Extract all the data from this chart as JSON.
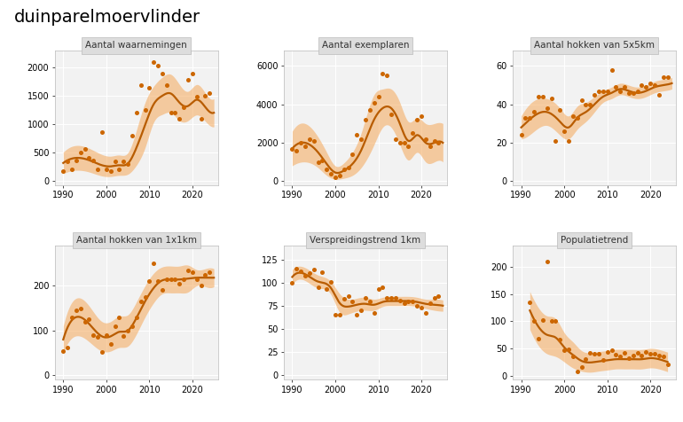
{
  "title": "duinparelmoervlinder",
  "panel_titles": [
    "Aantal waarnemingen",
    "Aantal exemplaren",
    "Aantal hokken van 5x5km",
    "Aantal hokken van 1x1km",
    "Verspreidingstrend 1km",
    "Populatietrend"
  ],
  "dot_color": "#CC6600",
  "line_color": "#B85C00",
  "ribbon_color": "#F5A85A",
  "bg_color": "#FFFFFF",
  "panel_bg": "#F2F2F2",
  "strip_bg": "#DDDDDD",
  "grid_color": "#FFFFFF",
  "xlim": [
    1988,
    2026
  ],
  "xticks": [
    1990,
    2000,
    2010,
    2020
  ],
  "panels": [
    {
      "ylim": [
        -80,
        2300
      ],
      "yticks": [
        0,
        500,
        1000,
        1500,
        2000
      ],
      "points_x": [
        1990,
        1991,
        1992,
        1993,
        1994,
        1995,
        1996,
        1997,
        1998,
        1999,
        2000,
        2001,
        2002,
        2003,
        2004,
        2005,
        2006,
        2007,
        2008,
        2009,
        2010,
        2011,
        2012,
        2013,
        2014,
        2015,
        2016,
        2017,
        2018,
        2019,
        2020,
        2021,
        2022,
        2023,
        2024
      ],
      "points_y": [
        160,
        340,
        190,
        350,
        490,
        560,
        400,
        350,
        200,
        850,
        190,
        160,
        340,
        200,
        340,
        290,
        790,
        1200,
        1690,
        1250,
        1640,
        2090,
        2040,
        1890,
        1690,
        1200,
        1200,
        1090,
        1300,
        1790,
        1890,
        1490,
        1090,
        1500,
        1550
      ],
      "smooth_x": [
        1990,
        1993,
        1996,
        1999,
        2001,
        2003,
        2005,
        2007,
        2009,
        2011,
        2013,
        2015,
        2017,
        2019,
        2021,
        2023,
        2025
      ],
      "smooth_y": [
        310,
        400,
        360,
        270,
        250,
        270,
        300,
        580,
        980,
        1350,
        1500,
        1540,
        1380,
        1320,
        1430,
        1300,
        1200
      ],
      "ci_lo": [
        120,
        180,
        150,
        80,
        70,
        90,
        110,
        270,
        580,
        1030,
        1170,
        1200,
        1060,
        1060,
        1160,
        1050,
        950
      ],
      "ci_hi": [
        500,
        620,
        570,
        460,
        430,
        450,
        490,
        890,
        1380,
        1670,
        1830,
        1880,
        1700,
        1580,
        1700,
        1550,
        1450
      ]
    },
    {
      "ylim": [
        -200,
        6800
      ],
      "yticks": [
        0,
        2000,
        4000,
        6000
      ],
      "points_x": [
        1990,
        1991,
        1992,
        1993,
        1994,
        1995,
        1996,
        1997,
        1998,
        1999,
        2000,
        2001,
        2002,
        2003,
        2004,
        2005,
        2006,
        2007,
        2008,
        2009,
        2010,
        2011,
        2012,
        2013,
        2014,
        2015,
        2016,
        2017,
        2018,
        2019,
        2020,
        2021,
        2022,
        2023,
        2024
      ],
      "points_y": [
        1700,
        1600,
        2000,
        1800,
        2200,
        2100,
        1000,
        1100,
        600,
        400,
        200,
        300,
        600,
        700,
        1400,
        2400,
        2200,
        3200,
        3700,
        4100,
        4400,
        5600,
        5500,
        3500,
        2200,
        2000,
        2000,
        1800,
        2500,
        3200,
        3400,
        2200,
        1800,
        2100,
        2000
      ],
      "smooth_x": [
        1990,
        1993,
        1996,
        1998,
        2000,
        2002,
        2004,
        2006,
        2009,
        2011,
        2013,
        2015,
        2017,
        2019,
        2021,
        2023,
        2025
      ],
      "smooth_y": [
        1700,
        2000,
        1500,
        900,
        450,
        550,
        900,
        1600,
        3200,
        3800,
        3800,
        3000,
        2100,
        2400,
        2000,
        2000,
        2000
      ],
      "ci_lo": [
        800,
        1000,
        700,
        300,
        100,
        150,
        300,
        700,
        1900,
        2800,
        2800,
        1900,
        1100,
        1500,
        1000,
        1000,
        1000
      ],
      "ci_hi": [
        2600,
        3000,
        2300,
        1500,
        800,
        950,
        1500,
        2500,
        4500,
        4800,
        4800,
        4100,
        3100,
        3300,
        3000,
        3000,
        3000
      ]
    },
    {
      "ylim": [
        -2,
        68
      ],
      "yticks": [
        0,
        20,
        40,
        60
      ],
      "points_x": [
        1990,
        1991,
        1992,
        1993,
        1994,
        1995,
        1996,
        1997,
        1998,
        1999,
        2000,
        2001,
        2002,
        2003,
        2004,
        2005,
        2006,
        2007,
        2008,
        2009,
        2010,
        2011,
        2012,
        2013,
        2014,
        2015,
        2016,
        2017,
        2018,
        2019,
        2020,
        2021,
        2022,
        2023,
        2024
      ],
      "points_y": [
        24,
        33,
        33,
        36,
        44,
        44,
        38,
        43,
        21,
        37,
        26,
        21,
        34,
        33,
        42,
        40,
        40,
        45,
        47,
        47,
        47,
        58,
        49,
        47,
        49,
        46,
        46,
        47,
        50,
        49,
        51,
        50,
        45,
        54,
        54
      ],
      "smooth_x": [
        1990,
        1993,
        1996,
        1999,
        2001,
        2003,
        2005,
        2007,
        2009,
        2011,
        2013,
        2015,
        2017,
        2019,
        2021,
        2023,
        2025
      ],
      "smooth_y": [
        28,
        34,
        36,
        31,
        28,
        33,
        36,
        40,
        44,
        46,
        48,
        47,
        46,
        47,
        49,
        50,
        51
      ],
      "ci_lo": [
        22,
        26,
        29,
        24,
        22,
        27,
        31,
        36,
        41,
        43,
        45,
        44,
        43,
        44,
        46,
        47,
        48
      ],
      "ci_hi": [
        34,
        42,
        43,
        38,
        34,
        39,
        41,
        44,
        47,
        49,
        51,
        50,
        49,
        50,
        52,
        53,
        54
      ]
    },
    {
      "ylim": [
        -10,
        290
      ],
      "yticks": [
        0,
        100,
        200
      ],
      "points_x": [
        1990,
        1991,
        1992,
        1993,
        1994,
        1995,
        1996,
        1997,
        1998,
        1999,
        2000,
        2001,
        2002,
        2003,
        2004,
        2005,
        2006,
        2007,
        2008,
        2009,
        2010,
        2011,
        2012,
        2013,
        2014,
        2015,
        2016,
        2017,
        2018,
        2019,
        2020,
        2021,
        2022,
        2023,
        2024
      ],
      "points_y": [
        55,
        62,
        130,
        145,
        150,
        120,
        125,
        90,
        85,
        52,
        90,
        70,
        110,
        130,
        88,
        100,
        110,
        130,
        165,
        175,
        210,
        250,
        210,
        190,
        215,
        215,
        215,
        205,
        215,
        235,
        230,
        215,
        200,
        225,
        230
      ],
      "smooth_x": [
        1990,
        1993,
        1996,
        1999,
        2001,
        2003,
        2005,
        2007,
        2009,
        2011,
        2013,
        2015,
        2017,
        2019,
        2021,
        2023,
        2025
      ],
      "smooth_y": [
        80,
        130,
        115,
        87,
        87,
        97,
        100,
        128,
        165,
        195,
        212,
        214,
        214,
        216,
        218,
        218,
        218
      ],
      "ci_lo": [
        50,
        88,
        75,
        54,
        54,
        62,
        65,
        92,
        130,
        162,
        182,
        184,
        184,
        186,
        200,
        198,
        198
      ],
      "ci_hi": [
        110,
        172,
        155,
        120,
        120,
        132,
        135,
        164,
        200,
        228,
        242,
        244,
        244,
        246,
        236,
        238,
        238
      ]
    },
    {
      "ylim": [
        -5,
        140
      ],
      "yticks": [
        0,
        25,
        50,
        75,
        100,
        125
      ],
      "points_x": [
        1990,
        1991,
        1992,
        1993,
        1994,
        1995,
        1996,
        1997,
        1998,
        1999,
        2000,
        2001,
        2002,
        2003,
        2004,
        2005,
        2006,
        2007,
        2008,
        2009,
        2010,
        2011,
        2012,
        2013,
        2014,
        2015,
        2016,
        2017,
        2018,
        2019,
        2020,
        2021,
        2022,
        2023,
        2024
      ],
      "points_y": [
        100,
        115,
        112,
        107,
        110,
        114,
        95,
        111,
        93,
        101,
        65,
        65,
        82,
        85,
        80,
        65,
        70,
        83,
        80,
        67,
        93,
        95,
        83,
        83,
        83,
        81,
        78,
        80,
        80,
        75,
        73,
        67,
        78,
        83,
        85
      ],
      "smooth_x": [
        1990,
        1993,
        1996,
        1999,
        2001,
        2003,
        2005,
        2007,
        2009,
        2011,
        2013,
        2015,
        2017,
        2019,
        2021,
        2023,
        2025
      ],
      "smooth_y": [
        106,
        109,
        101,
        94,
        78,
        74,
        76,
        77,
        76,
        79,
        80,
        80,
        80,
        79,
        77,
        76,
        75
      ],
      "ci_lo": [
        98,
        102,
        94,
        87,
        68,
        66,
        69,
        70,
        70,
        74,
        75,
        75,
        75,
        74,
        72,
        70,
        69
      ],
      "ci_hi": [
        114,
        116,
        108,
        101,
        88,
        82,
        83,
        84,
        82,
        84,
        85,
        85,
        85,
        84,
        82,
        82,
        81
      ]
    },
    {
      "ylim": [
        -8,
        240
      ],
      "yticks": [
        0,
        50,
        100,
        150,
        200
      ],
      "points_x": [
        1992,
        1993,
        1994,
        1995,
        1996,
        1997,
        1998,
        1999,
        2000,
        2001,
        2002,
        2003,
        2004,
        2005,
        2006,
        2007,
        2008,
        2009,
        2010,
        2011,
        2012,
        2013,
        2014,
        2015,
        2016,
        2017,
        2018,
        2019,
        2020,
        2021,
        2022,
        2023,
        2024
      ],
      "points_y": [
        135,
        100,
        68,
        103,
        210,
        100,
        100,
        67,
        47,
        48,
        35,
        7,
        15,
        30,
        42,
        40,
        40,
        28,
        43,
        47,
        38,
        35,
        42,
        32,
        37,
        42,
        37,
        44,
        40,
        40,
        37,
        35,
        20
      ],
      "smooth_x": [
        1992,
        1994,
        1996,
        1998,
        2000,
        2002,
        2004,
        2006,
        2008,
        2010,
        2012,
        2014,
        2016,
        2018,
        2020,
        2022,
        2024
      ],
      "smooth_y": [
        120,
        90,
        75,
        70,
        52,
        38,
        27,
        24,
        26,
        28,
        30,
        30,
        30,
        30,
        32,
        30,
        25
      ],
      "ci_lo": [
        85,
        55,
        40,
        35,
        25,
        14,
        8,
        6,
        8,
        10,
        12,
        12,
        12,
        12,
        14,
        12,
        7
      ],
      "ci_hi": [
        155,
        125,
        110,
        105,
        79,
        62,
        46,
        42,
        44,
        46,
        48,
        48,
        48,
        48,
        50,
        48,
        43
      ]
    }
  ]
}
